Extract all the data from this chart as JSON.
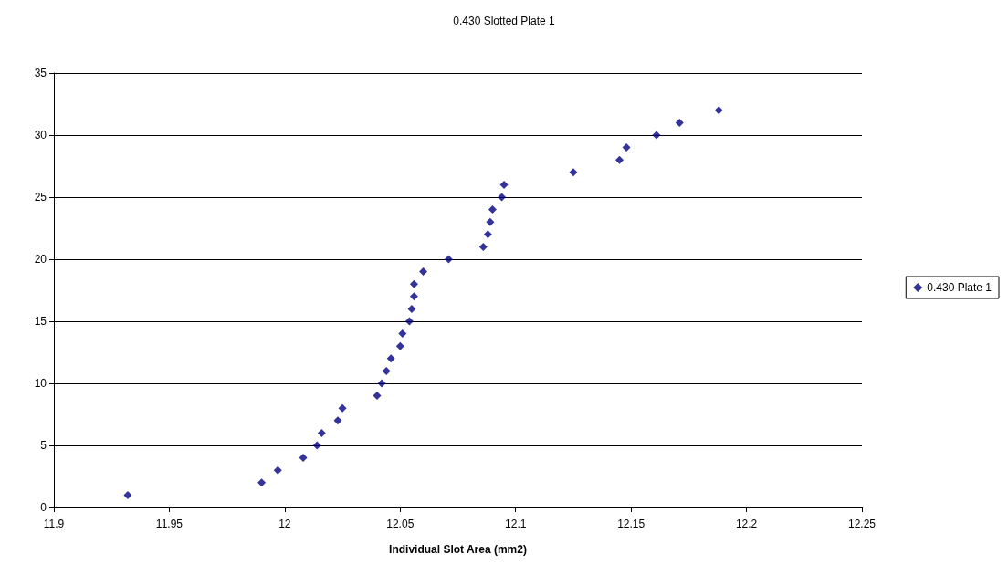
{
  "chart_data": {
    "type": "scatter",
    "title": "0.430 Slotted Plate 1",
    "xlabel": "Individual Slot Area (mm2)",
    "xlim": [
      11.9,
      12.25
    ],
    "xticks": [
      11.9,
      11.95,
      12,
      12.05,
      12.1,
      12.15,
      12.2,
      12.25
    ],
    "ylim": [
      0,
      35
    ],
    "yticks": [
      0,
      5,
      10,
      15,
      20,
      25,
      30,
      35
    ],
    "grid": "y",
    "legend": "right",
    "marker": "diamond",
    "series": [
      {
        "name": "0.430 Plate 1",
        "color": "#000080",
        "x": [
          11.932,
          11.99,
          11.997,
          12.008,
          12.014,
          12.016,
          12.023,
          12.025,
          12.04,
          12.042,
          12.044,
          12.046,
          12.05,
          12.051,
          12.054,
          12.055,
          12.056,
          12.056,
          12.06,
          12.071,
          12.086,
          12.088,
          12.089,
          12.09,
          12.094,
          12.095,
          12.125,
          12.145,
          12.148,
          12.161,
          12.171,
          12.188
        ],
        "values": [
          1,
          2,
          3,
          4,
          5,
          6,
          7,
          8,
          9,
          10,
          11,
          12,
          13,
          14,
          15,
          16,
          17,
          18,
          19,
          20,
          21,
          22,
          23,
          24,
          25,
          26,
          27,
          28,
          29,
          30,
          31,
          32
        ]
      }
    ]
  }
}
